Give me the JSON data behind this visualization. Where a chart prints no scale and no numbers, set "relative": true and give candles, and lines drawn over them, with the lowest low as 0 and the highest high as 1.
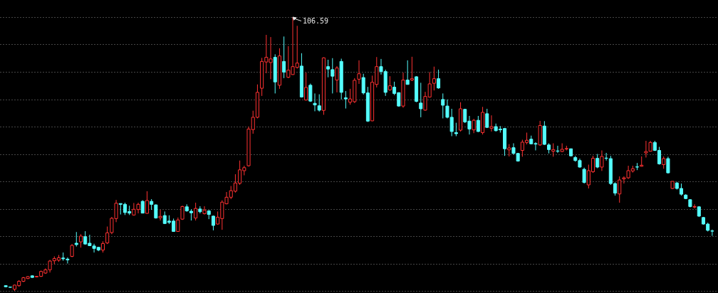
{
  "chart_data": {
    "type": "candlestick",
    "relative": true,
    "grid": "y",
    "annotations": [
      "106.59"
    ],
    "categories": [
      null,
      null,
      null,
      null,
      null,
      null,
      null,
      null,
      null,
      null,
      null,
      null,
      null,
      null,
      null,
      null,
      null,
      null,
      null,
      null,
      null,
      null,
      null,
      null,
      null,
      null,
      null,
      null,
      null,
      null,
      null,
      null,
      null,
      null,
      null,
      null,
      null,
      null,
      null,
      null,
      null,
      null,
      null,
      null,
      null,
      null,
      null,
      null,
      null,
      null,
      null,
      null,
      null,
      null,
      null,
      null,
      null,
      null,
      null,
      null,
      null,
      null,
      null,
      null,
      null,
      null,
      null,
      null,
      null,
      null,
      null,
      null,
      null,
      null,
      null,
      null,
      null,
      null,
      null,
      null,
      null,
      null,
      null,
      null,
      null,
      null,
      null,
      null,
      null,
      null,
      null,
      null,
      null,
      null,
      null,
      null,
      null,
      null,
      null,
      null,
      null,
      null,
      null,
      null,
      null,
      null,
      null,
      null,
      null,
      null,
      null,
      null,
      null,
      null,
      null,
      null,
      null,
      null,
      null,
      null,
      null,
      null,
      null,
      null,
      null,
      null,
      null,
      null,
      null,
      null,
      null,
      null,
      null,
      null,
      null,
      null,
      null,
      null,
      null,
      null,
      null,
      null,
      null,
      null,
      null,
      null,
      null,
      null,
      null,
      null,
      null,
      null,
      null,
      null,
      null,
      null,
      null,
      null,
      null,
      null,
      null
    ],
    "ohlc": [
      [
        0.019,
        0.021,
        0.013,
        0.015
      ],
      [
        0.014,
        0.015,
        0.012,
        0.013
      ],
      [
        0.006,
        0.023,
        0,
        0.021
      ],
      [
        0.019,
        0.039,
        0.015,
        0.035
      ],
      [
        0.035,
        0.051,
        0.032,
        0.048
      ],
      [
        0.045,
        0.054,
        0.043,
        0.052
      ],
      [
        0.055,
        0.057,
        0.048,
        0.049
      ],
      [
        0.051,
        0.054,
        0.05,
        0.053
      ],
      [
        0.053,
        0.074,
        0.051,
        0.071
      ],
      [
        0.065,
        0.082,
        0.062,
        0.077
      ],
      [
        0.077,
        0.113,
        0.067,
        0.109
      ],
      [
        0.11,
        0.126,
        0.097,
        0.118
      ],
      [
        0.112,
        0.131,
        0.106,
        0.121
      ],
      [
        0.12,
        0.14,
        0.11,
        0.117
      ],
      [
        0.116,
        0.122,
        0.1,
        0.113
      ],
      [
        0.126,
        0.171,
        0.123,
        0.166
      ],
      [
        0.174,
        0.215,
        0.162,
        0.169
      ],
      [
        0.179,
        0.207,
        0.158,
        0.2
      ],
      [
        0.198,
        0.218,
        0.169,
        0.171
      ],
      [
        0.174,
        0.205,
        0.164,
        0.165
      ],
      [
        0.164,
        0.172,
        0.14,
        0.155
      ],
      [
        0.159,
        0.161,
        0.145,
        0.149
      ],
      [
        0.149,
        0.181,
        0.14,
        0.173
      ],
      [
        0.175,
        0.235,
        0.171,
        0.212
      ],
      [
        0.213,
        0.27,
        0.207,
        0.265
      ],
      [
        0.264,
        0.332,
        0.251,
        0.32
      ],
      [
        0.319,
        0.319,
        0.279,
        0.316
      ],
      [
        0.316,
        0.322,
        0.277,
        0.286
      ],
      [
        0.29,
        0.311,
        0.277,
        0.284
      ],
      [
        0.277,
        0.321,
        0.275,
        0.298
      ],
      [
        0.297,
        0.322,
        0.283,
        0.316
      ],
      [
        0.327,
        0.331,
        0.283,
        0.284
      ],
      [
        0.283,
        0.364,
        0.282,
        0.33
      ],
      [
        0.327,
        0.335,
        0.296,
        0.316
      ],
      [
        0.314,
        0.316,
        0.264,
        0.266
      ],
      [
        0.267,
        0.296,
        0.257,
        0.272
      ],
      [
        0.275,
        0.29,
        0.244,
        0.246
      ],
      [
        0.255,
        0.276,
        0.244,
        0.25
      ],
      [
        0.255,
        0.264,
        0.216,
        0.217
      ],
      [
        0.217,
        0.268,
        0.216,
        0.259
      ],
      [
        0.262,
        0.311,
        0.259,
        0.308
      ],
      [
        0.307,
        0.316,
        0.289,
        0.292
      ],
      [
        0.291,
        0.298,
        0.257,
        0.285
      ],
      [
        0.266,
        0.322,
        0.257,
        0.301
      ],
      [
        0.299,
        0.309,
        0.283,
        0.289
      ],
      [
        0.282,
        0.309,
        0.279,
        0.295
      ],
      [
        0.292,
        0.295,
        0.262,
        0.279
      ],
      [
        0.273,
        0.275,
        0.221,
        0.239
      ],
      [
        0.244,
        0.29,
        0.242,
        0.269
      ],
      [
        0.264,
        0.331,
        0.223,
        0.324
      ],
      [
        0.318,
        0.361,
        0.316,
        0.342
      ],
      [
        0.342,
        0.383,
        0.335,
        0.366
      ],
      [
        0.364,
        0.426,
        0.359,
        0.394
      ],
      [
        0.393,
        0.476,
        0.387,
        0.442
      ],
      [
        0.439,
        0.457,
        0.422,
        0.45
      ],
      [
        0.457,
        0.6,
        0.454,
        0.591
      ],
      [
        0.589,
        0.658,
        0.574,
        0.634
      ],
      [
        0.634,
        0.754,
        0.63,
        0.725
      ],
      [
        0.74,
        0.851,
        0.712,
        0.838
      ],
      [
        0.836,
        0.935,
        0.795,
        0.853
      ],
      [
        0.834,
        0.927,
        0.773,
        0.847
      ],
      [
        0.853,
        0.864,
        0.721,
        0.763
      ],
      [
        0.751,
        0.886,
        0.738,
        0.858
      ],
      [
        0.838,
        0.929,
        0.777,
        0.799
      ],
      [
        0.78,
        0.894,
        0.777,
        0.806
      ],
      [
        0.79,
        1,
        0.789,
        0.819
      ],
      [
        0.816,
        0.968,
        0.812,
        0.832
      ],
      [
        0.821,
        0.868,
        0.706,
        0.708
      ],
      [
        0.697,
        0.797,
        0.695,
        0.743
      ],
      [
        0.751,
        0.757,
        0.69,
        0.693
      ],
      [
        0.685,
        0.721,
        0.656,
        0.679
      ],
      [
        0.676,
        0.718,
        0.655,
        0.66
      ],
      [
        0.659,
        0.853,
        0.643,
        0.851
      ],
      [
        0.819,
        0.844,
        0.78,
        0.81
      ],
      [
        0.808,
        0.85,
        0.721,
        0.784
      ],
      [
        0.77,
        0.821,
        0.725,
        0.814
      ],
      [
        0.838,
        0.848,
        0.699,
        0.725
      ],
      [
        0.705,
        0.73,
        0.666,
        0.701
      ],
      [
        0.689,
        0.738,
        0.68,
        0.701
      ],
      [
        0.691,
        0.777,
        0.686,
        0.769
      ],
      [
        0.773,
        0.842,
        0.756,
        0.793
      ],
      [
        0.779,
        0.793,
        0.717,
        0.723
      ],
      [
        0.723,
        0.745,
        0.617,
        0.62
      ],
      [
        0.621,
        0.786,
        0.62,
        0.762
      ],
      [
        0.754,
        0.854,
        0.743,
        0.819
      ],
      [
        0.819,
        0.847,
        0.79,
        0.801
      ],
      [
        0.801,
        0.808,
        0.712,
        0.725
      ],
      [
        0.734,
        0.784,
        0.731,
        0.749
      ],
      [
        0.744,
        0.764,
        0.715,
        0.721
      ],
      [
        0.724,
        0.725,
        0.673,
        0.675
      ],
      [
        0.675,
        0.797,
        0.669,
        0.77
      ],
      [
        0.77,
        0.842,
        0.753,
        0.754
      ],
      [
        0.77,
        0.855,
        0.766,
        0.775
      ],
      [
        0.782,
        0.784,
        0.689,
        0.692
      ],
      [
        0.686,
        0.76,
        0.634,
        0.665
      ],
      [
        0.66,
        0.727,
        0.658,
        0.71
      ],
      [
        0.708,
        0.799,
        0.706,
        0.756
      ],
      [
        0.758,
        0.819,
        0.732,
        0.775
      ],
      [
        0.775,
        0.808,
        0.738,
        0.741
      ],
      [
        0.699,
        0.721,
        0.63,
        0.678
      ],
      [
        0.675,
        0.699,
        0.63,
        0.634
      ],
      [
        0.634,
        0.665,
        0.565,
        0.582
      ],
      [
        0.578,
        0.614,
        0.565,
        0.574
      ],
      [
        0.587,
        0.689,
        0.582,
        0.665
      ],
      [
        0.663,
        0.665,
        0.613,
        0.617
      ],
      [
        0.62,
        0.639,
        0.571,
        0.591
      ],
      [
        0.588,
        0.628,
        0.576,
        0.623
      ],
      [
        0.623,
        0.639,
        0.58,
        0.582
      ],
      [
        0.578,
        0.672,
        0.571,
        0.652
      ],
      [
        0.647,
        0.665,
        0.595,
        0.597
      ],
      [
        0.594,
        0.641,
        0.582,
        0.6
      ],
      [
        0.6,
        0.611,
        0.582,
        0.585
      ],
      [
        0.591,
        0.602,
        0.578,
        0.588
      ],
      [
        0.593,
        0.595,
        0.493,
        0.519
      ],
      [
        0.515,
        0.536,
        0.491,
        0.522
      ],
      [
        0.523,
        0.539,
        0.498,
        0.502
      ],
      [
        0.502,
        0.504,
        0.472,
        0.474
      ],
      [
        0.513,
        0.552,
        0.49,
        0.543
      ],
      [
        0.542,
        0.578,
        0.535,
        0.55
      ],
      [
        0.554,
        0.567,
        0.535,
        0.537
      ],
      [
        0.538,
        0.543,
        0.513,
        0.536
      ],
      [
        0.533,
        0.621,
        0.53,
        0.604
      ],
      [
        0.602,
        0.62,
        0.533,
        0.535
      ],
      [
        0.533,
        0.539,
        0.502,
        0.516
      ],
      [
        0.51,
        0.539,
        0.49,
        0.516
      ],
      [
        0.511,
        0.53,
        0.504,
        0.51
      ],
      [
        0.509,
        0.539,
        0.507,
        0.517
      ],
      [
        0.518,
        0.53,
        0.513,
        0.52
      ],
      [
        0.519,
        0.519,
        0.491,
        0.493
      ],
      [
        0.487,
        0.493,
        0.472,
        0.476
      ],
      [
        0.476,
        0.483,
        0.45,
        0.452
      ],
      [
        0.444,
        0.45,
        0.392,
        0.396
      ],
      [
        0.387,
        0.461,
        0.374,
        0.439
      ],
      [
        0.435,
        0.493,
        0.431,
        0.484
      ],
      [
        0.484,
        0.5,
        0.448,
        0.452
      ],
      [
        0.452,
        0.513,
        0.438,
        0.491
      ],
      [
        0.485,
        0.504,
        0.476,
        0.484
      ],
      [
        0.483,
        0.493,
        0.387,
        0.392
      ],
      [
        0.392,
        0.396,
        0.348,
        0.357
      ],
      [
        0.354,
        0.418,
        0.322,
        0.405
      ],
      [
        0.409,
        0.418,
        0.392,
        0.413
      ],
      [
        0.413,
        0.457,
        0.409,
        0.439
      ],
      [
        0.438,
        0.457,
        0.432,
        0.446
      ],
      [
        0.453,
        0.467,
        0.441,
        0.452
      ],
      [
        0.455,
        0.491,
        0.454,
        0.459
      ],
      [
        0.504,
        0.548,
        0.487,
        0.509
      ],
      [
        0.51,
        0.548,
        0.509,
        0.542
      ],
      [
        0.542,
        0.548,
        0.511,
        0.513
      ],
      [
        0.513,
        0.526,
        0.461,
        0.464
      ],
      [
        0.461,
        0.491,
        0.446,
        0.483
      ],
      [
        0.483,
        0.49,
        0.429,
        0.431
      ],
      [
        0.374,
        0.4,
        0.372,
        0.4
      ],
      [
        0.394,
        0.398,
        0.37,
        0.374
      ],
      [
        0.374,
        0.392,
        0.348,
        0.353
      ],
      [
        0.35,
        0.353,
        0.335,
        0.337
      ],
      [
        0.333,
        0.335,
        0.305,
        0.308
      ],
      [
        0.306,
        0.316,
        0.301,
        0.308
      ],
      [
        0.307,
        0.309,
        0.27,
        0.273
      ],
      [
        0.268,
        0.27,
        0.242,
        0.244
      ],
      [
        0.244,
        0.249,
        0.217,
        0.221
      ],
      [
        0.219,
        0.224,
        0.201,
        0.218
      ]
    ],
    "colors": [
      "#54fcfc",
      "#54fcfc",
      "#ff3232",
      "#ff3232",
      "#ff3232",
      "#ff3232",
      "#54fcfc",
      "#ff3232",
      "#ff3232",
      "#ff3232",
      "#ff3232",
      "#ff3232",
      "#ff3232",
      "#54fcfc",
      "#54fcfc",
      "#ff3232",
      "#54fcfc",
      "#ff3232",
      "#54fcfc",
      "#54fcfc",
      "#54fcfc",
      "#54fcfc",
      "#ff3232",
      "#ff3232",
      "#ff3232",
      "#ff3232",
      "#54fcfc",
      "#54fcfc",
      "#54fcfc",
      "#ff3232",
      "#ff3232",
      "#54fcfc",
      "#ff3232",
      "#54fcfc",
      "#54fcfc",
      "#ff3232",
      "#54fcfc",
      "#54fcfc",
      "#54fcfc",
      "#ff3232",
      "#ff3232",
      "#54fcfc",
      "#54fcfc",
      "#ff3232",
      "#54fcfc",
      "#ff3232",
      "#54fcfc",
      "#54fcfc",
      "#ff3232",
      "#ff3232",
      "#ff3232",
      "#ff3232",
      "#ff3232",
      "#ff3232",
      "#ff3232",
      "#ff3232",
      "#ff3232",
      "#ff3232",
      "#ff3232",
      "#ff3232",
      "#ff3232",
      "#54fcfc",
      "#ff3232",
      "#54fcfc",
      "#ff3232",
      "#ff3232",
      "#ff3232",
      "#54fcfc",
      "#ff3232",
      "#54fcfc",
      "#54fcfc",
      "#54fcfc",
      "#ff3232",
      "#54fcfc",
      "#54fcfc",
      "#ff3232",
      "#54fcfc",
      "#54fcfc",
      "#ff3232",
      "#ff3232",
      "#ff3232",
      "#54fcfc",
      "#54fcfc",
      "#ff3232",
      "#ff3232",
      "#54fcfc",
      "#54fcfc",
      "#ff3232",
      "#54fcfc",
      "#54fcfc",
      "#ff3232",
      "#54fcfc",
      "#ff3232",
      "#54fcfc",
      "#54fcfc",
      "#ff3232",
      "#ff3232",
      "#ff3232",
      "#54fcfc",
      "#54fcfc",
      "#54fcfc",
      "#54fcfc",
      "#54fcfc",
      "#ff3232",
      "#54fcfc",
      "#54fcfc",
      "#ff3232",
      "#54fcfc",
      "#ff3232",
      "#54fcfc",
      "#ff3232",
      "#54fcfc",
      "#54fcfc",
      "#54fcfc",
      "#ff3232",
      "#54fcfc",
      "#54fcfc",
      "#ff3232",
      "#ff3232",
      "#54fcfc",
      "#54fcfc",
      "#ff3232",
      "#54fcfc",
      "#54fcfc",
      "#ff3232",
      "#54fcfc",
      "#ff3232",
      "#ff3232",
      "#54fcfc",
      "#54fcfc",
      "#54fcfc",
      "#54fcfc",
      "#ff3232",
      "#ff3232",
      "#54fcfc",
      "#ff3232",
      "#54fcfc",
      "#54fcfc",
      "#54fcfc",
      "#ff3232",
      "#ff3232",
      "#ff3232",
      "#ff3232",
      "#54fcfc",
      "#ff3232",
      "#ff3232",
      "#ff3232",
      "#54fcfc",
      "#54fcfc",
      "#ff3232",
      "#54fcfc",
      "#ff3232",
      "#54fcfc",
      "#54fcfc",
      "#54fcfc",
      "#54fcfc",
      "#ff3232",
      "#54fcfc",
      "#54fcfc",
      "#54fcfc",
      "#54fcfc"
    ]
  }
}
